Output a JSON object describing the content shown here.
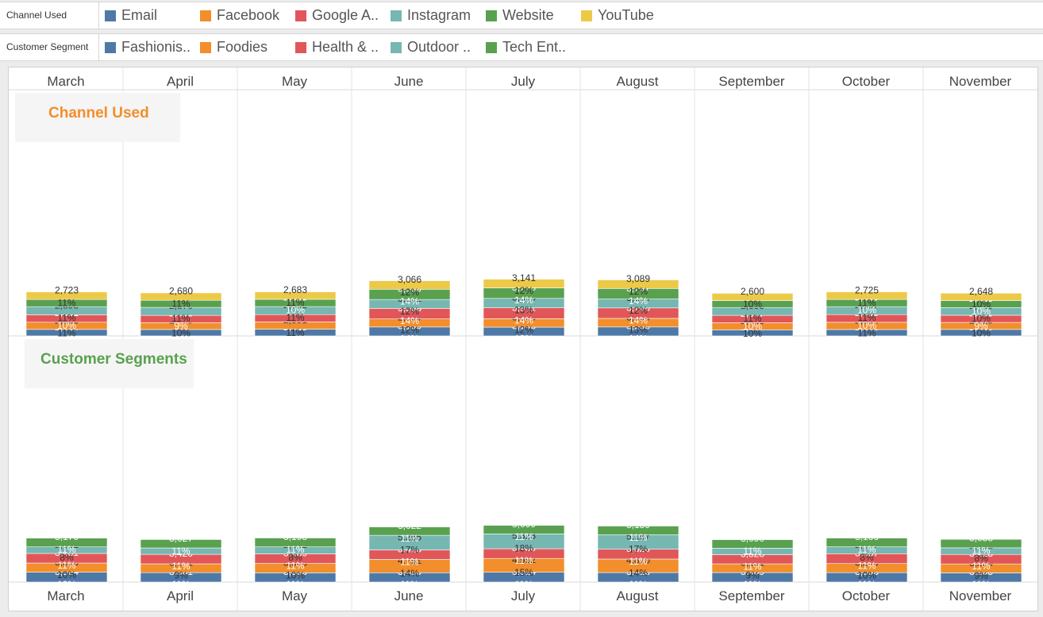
{
  "legends": [
    {
      "title": "Channel Used",
      "items": [
        {
          "label": "Email",
          "color": "#4e79a7"
        },
        {
          "label": "Facebook",
          "color": "#f28e2b"
        },
        {
          "label": "Google A..",
          "color": "#e15759"
        },
        {
          "label": "Instagram",
          "color": "#76b7b2"
        },
        {
          "label": "Website",
          "color": "#59a14f"
        },
        {
          "label": "YouTube",
          "color": "#edc948"
        }
      ]
    },
    {
      "title": "Customer Segment",
      "items": [
        {
          "label": "Fashionis..",
          "color": "#4e79a7"
        },
        {
          "label": "Foodies",
          "color": "#f28e2b"
        },
        {
          "label": "Health & ..",
          "color": "#e15759"
        },
        {
          "label": "Outdoor ..",
          "color": "#76b7b2"
        },
        {
          "label": "Tech Ent..",
          "color": "#59a14f"
        }
      ]
    }
  ],
  "chart_data": [
    {
      "type": "bar",
      "stacked": true,
      "title": "Channel Used",
      "title_color": "#f28e2b",
      "categories": [
        "March",
        "April",
        "May",
        "June",
        "July",
        "August",
        "September",
        "October",
        "November"
      ],
      "series": [
        {
          "name": "Email",
          "color": "#4e79a7",
          "values": [
            2334,
            2300,
            2415,
            3199,
            3143,
            3208,
            2184,
            2293,
            2330
          ],
          "labels": [
            "2,334\n10%",
            "",
            "2,415\n10%",
            "3,199\n14%",
            "3,143\n13%",
            "3,208\n14%",
            "2,184\n9%",
            "2,293\n10%",
            "2,330\n10%"
          ]
        },
        {
          "name": "Facebook",
          "color": "#f28e2b",
          "values": [
            2586,
            2479,
            2591,
            2889,
            3025,
            3090,
            2528,
            2594,
            2515
          ],
          "labels": [
            "2,586\n11%",
            "2,479\n10%",
            "2,591\n11%",
            "2,889\n12%",
            "3,025\n12%",
            "3,090\n13%",
            "2,528\n10%",
            "2,594\n11%",
            "2,515\n10%"
          ]
        },
        {
          "name": "Google A..",
          "color": "#e15759",
          "values": [
            2691,
            2596,
            2650,
            3808,
            3931,
            3766,
            2677,
            2769,
            2595
          ],
          "labels": [
            "2,691\n10%",
            "2,596\n9%",
            "",
            "3,808\n14%",
            "3,931\n14%",
            "3,766\n14%",
            "2,677\n10%",
            "2,769\n10%",
            "2,595\n9%"
          ]
        },
        {
          "name": "Instagram",
          "color": "#76b7b2",
          "values": [
            2898,
            2870,
            2882,
            3202,
            3395,
            3199,
            2835,
            2857,
            2759
          ],
          "labels": [
            "2,898\n11%",
            "2,870\n11%",
            "2,882\n11%",
            "3,202\n12%",
            "3,395\n13%",
            "3,199\n12%",
            "2,835\n11%",
            "2,857\n11%",
            "2,759\n10%"
          ]
        },
        {
          "name": "Website",
          "color": "#59a14f",
          "values": [
            2600,
            2550,
            2625,
            3680,
            3773,
            3797,
            2500,
            2609,
            2525
          ],
          "labels": [
            "",
            "",
            "2,625\n10%",
            "3,680\n14%",
            "3,773\n14%",
            "3,797\n14%",
            "",
            "2,609\n10%",
            "2,525\n10%"
          ]
        },
        {
          "name": "YouTube",
          "color": "#edc948",
          "values": [
            2723,
            2680,
            2683,
            3066,
            3141,
            3089,
            2600,
            2725,
            2648
          ],
          "labels": [
            "2,723\n11%",
            "2,680\n11%",
            "2,683\n11%",
            "3,066\n12%",
            "3,141\n12%",
            "3,089\n12%",
            "2,600\n10%",
            "2,725\n11%",
            "2,648\n10%"
          ]
        }
      ]
    },
    {
      "type": "bar",
      "stacked": true,
      "title": "Customer Segments",
      "title_color": "#59a14f",
      "categories": [
        "March",
        "April",
        "May",
        "June",
        "July",
        "August",
        "September",
        "October",
        "November"
      ],
      "series": [
        {
          "name": "Fashionis..",
          "color": "#4e79a7",
          "values": [
            3524,
            3381,
            3323,
            3350,
            3514,
            3413,
            3409,
            3398,
            3295
          ],
          "labels": [
            "3,524\n12%",
            "3,381\n11%",
            "3,323\n11%",
            "3,350\n11%",
            "3,514\n11%",
            "3,413\n11%",
            "3,409\n11%",
            "3,398\n11%",
            "3,295\n11%"
          ]
        },
        {
          "name": "Foodies",
          "color": "#f28e2b",
          "values": [
            3316,
            3171,
            3363,
            4791,
            4992,
            4870,
            3131,
            3249,
            3224
          ],
          "labels": [
            "3,316\n10%",
            "3,171\n9%",
            "3,363\n10%",
            "4,791\n14%",
            "4,992\n15%",
            "4,870\n14%",
            "3,131\n9%",
            "3,249\n10%",
            "3,224\n9%"
          ]
        },
        {
          "name": "Health & ..",
          "color": "#e15759",
          "values": [
            3451,
            3420,
            3439,
            3415,
            3480,
            3520,
            3328,
            3557,
            3413
          ],
          "labels": [
            "3,451\n11%",
            "3,420\n11%",
            "3,439\n11%",
            "3,415\n11%",
            "3,480\n11%",
            "3,520\n11%",
            "3,328\n11%",
            "3,557\n11%",
            "3,413\n11%"
          ]
        },
        {
          "name": "Outdoor ..",
          "color": "#76b7b2",
          "values": [
            2362,
            2300,
            2542,
            5266,
            5323,
            5187,
            2300,
            2477,
            2382
          ],
          "labels": [
            "2,362\n8%",
            "",
            "2,542\n8%",
            "5,266\n17%",
            "5,323\n18%",
            "5,187\n17%",
            "",
            "2,477\n8%",
            "2,382\n8%"
          ]
        },
        {
          "name": "Tech Ent..",
          "color": "#59a14f",
          "values": [
            3170,
            3027,
            3193,
            3022,
            3099,
            3159,
            3090,
            3166,
            3058
          ],
          "labels": [
            "3,170\n11%",
            "3,027\n11%",
            "3,193\n11%",
            "3,022\n11%",
            "3,099\n11%",
            "3,159\n11%",
            "3,090\n11%",
            "3,166\n11%",
            "3,058\n11%"
          ]
        }
      ]
    }
  ]
}
